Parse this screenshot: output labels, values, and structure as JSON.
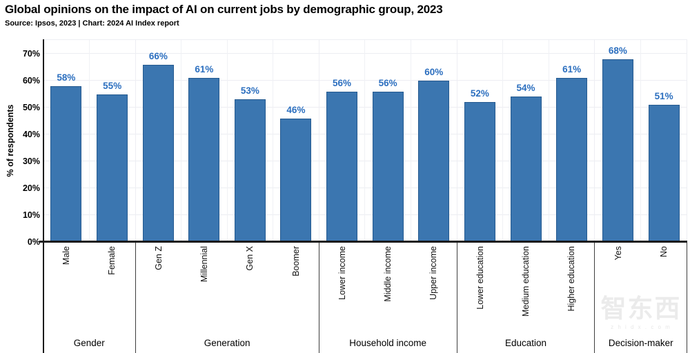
{
  "header": {
    "title": "Global opinions on the impact of AI on current jobs by demographic group, 2023",
    "subtitle": "Source: Ipsos, 2023 | Chart: 2024 AI Index report"
  },
  "chart_data": {
    "type": "bar",
    "title": "Global opinions on the impact of AI on current jobs by demographic group, 2023",
    "xlabel": "",
    "ylabel": "% of respondents",
    "ylim": [
      0,
      70
    ],
    "yticks": [
      "0%",
      "10%",
      "20%",
      "30%",
      "40%",
      "50%",
      "60%",
      "70%"
    ],
    "grid": true,
    "value_suffix": "%",
    "legend_position": "none",
    "groups": [
      {
        "label": "Gender",
        "categories": [
          "Male",
          "Female"
        ],
        "values": [
          58,
          55
        ]
      },
      {
        "label": "Generation",
        "categories": [
          "Gen Z",
          "Millennial",
          "Gen X",
          "Boomer"
        ],
        "values": [
          66,
          61,
          53,
          46
        ]
      },
      {
        "label": "Household income",
        "categories": [
          "Lower income",
          "Middle income",
          "Upper income"
        ],
        "values": [
          56,
          56,
          60
        ]
      },
      {
        "label": "Education",
        "categories": [
          "Lower education",
          "Medium education",
          "Higher education"
        ],
        "values": [
          52,
          54,
          61
        ]
      },
      {
        "label": "Decision-maker",
        "categories": [
          "Yes",
          "No"
        ],
        "values": [
          68,
          51
        ]
      }
    ],
    "colors": {
      "bar_fill": "#3b76b0",
      "bar_border": "#24598f",
      "value_label": "#2c6fbf",
      "axis_line": "#1a1a1a",
      "gridline": "#ecedf2"
    }
  },
  "watermark": {
    "logo": "智东西",
    "caption": "z h i d x . c o m"
  }
}
